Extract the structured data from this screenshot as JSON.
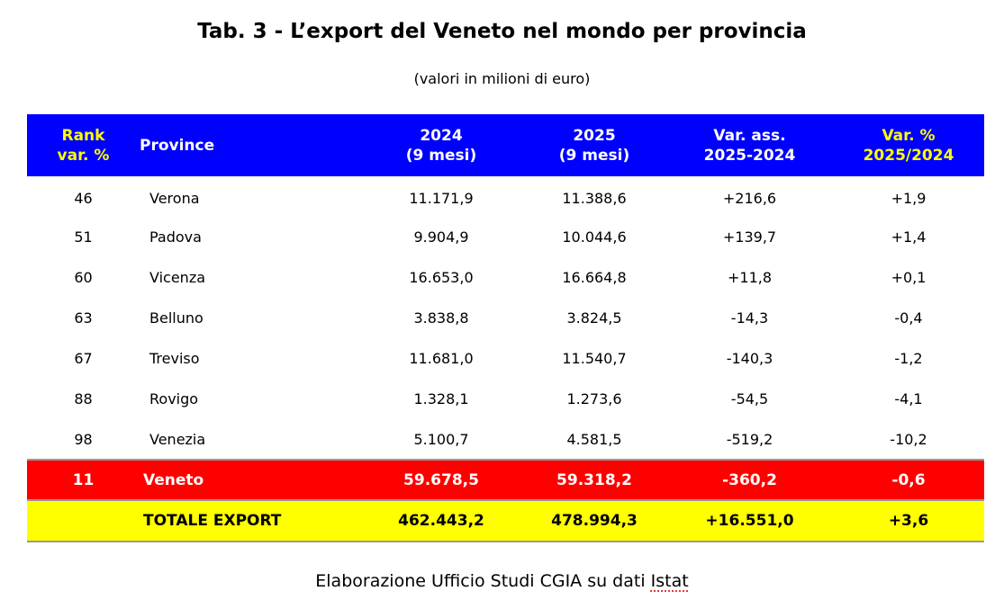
{
  "title": "Tab. 3 - L’export del Veneto nel mondo per provincia",
  "subtitle": "(valori in milioni di euro)",
  "headers": {
    "rank": [
      "Rank",
      "var. %"
    ],
    "province": "Province",
    "y2024": [
      "2024",
      "(9 mesi)"
    ],
    "y2025": [
      "2025",
      "(9 mesi)"
    ],
    "var_ass": [
      "Var. ass.",
      "2025-2024"
    ],
    "var_pct": [
      "Var. %",
      "2025/2024"
    ]
  },
  "rows": [
    {
      "rank": "46",
      "province": "Verona",
      "y2024": "11.171,9",
      "y2025": "11.388,6",
      "var_ass": "+216,6",
      "var_pct": "+1,9"
    },
    {
      "rank": "51",
      "province": "Padova",
      "y2024": "9.904,9",
      "y2025": "10.044,6",
      "var_ass": "+139,7",
      "var_pct": "+1,4"
    },
    {
      "rank": "60",
      "province": "Vicenza",
      "y2024": "16.653,0",
      "y2025": "16.664,8",
      "var_ass": "+11,8",
      "var_pct": "+0,1"
    },
    {
      "rank": "63",
      "province": "Belluno",
      "y2024": "3.838,8",
      "y2025": "3.824,5",
      "var_ass": "-14,3",
      "var_pct": "-0,4"
    },
    {
      "rank": "67",
      "province": "Treviso",
      "y2024": "11.681,0",
      "y2025": "11.540,7",
      "var_ass": "-140,3",
      "var_pct": "-1,2"
    },
    {
      "rank": "88",
      "province": "Rovigo",
      "y2024": "1.328,1",
      "y2025": "1.273,6",
      "var_ass": "-54,5",
      "var_pct": "-4,1"
    },
    {
      "rank": "98",
      "province": "Venezia",
      "y2024": "5.100,7",
      "y2025": "4.581,5",
      "var_ass": "-519,2",
      "var_pct": "-10,2"
    }
  ],
  "veneto": {
    "rank": "11",
    "province": "Veneto",
    "y2024": "59.678,5",
    "y2025": "59.318,2",
    "var_ass": "-360,2",
    "var_pct": "-0,6"
  },
  "totale": {
    "rank": "",
    "province": "TOTALE EXPORT",
    "y2024": "462.443,2",
    "y2025": "478.994,3",
    "var_ass": "+16.551,0",
    "var_pct": "+3,6"
  },
  "footer": {
    "text": "Elaborazione Ufficio Studi CGIA su dati ",
    "source": "Istat"
  },
  "colors": {
    "header_bg": "#0000ff",
    "header_accent": "#ffff00",
    "veneto_bg": "#ff0000",
    "totale_bg": "#ffff00"
  }
}
